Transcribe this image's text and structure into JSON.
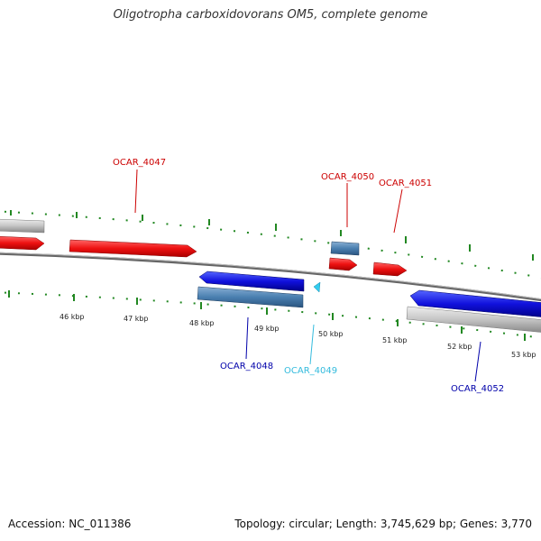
{
  "title": "Oligotropha carboxidovorans OM5, complete genome",
  "footer": {
    "accession": "Accession: NC_011386",
    "summary": "Topology: circular; Length: 3,745,629 bp; Genes: 3,770"
  },
  "colors": {
    "forward_cds": "#ee1111",
    "reverse_cds": "#1111dd",
    "forward_gene": "#4a7fb0",
    "reverse_gene": "#5a8ab8",
    "other_gene": "#bbbbbb",
    "small_feature": "#33ccee",
    "tick": "#228822",
    "backbone": "#777777",
    "label_forward": "#cc0000",
    "label_reverse": "#0000aa",
    "label_small": "#33bbdd"
  },
  "scale": {
    "ticks": [
      {
        "label": "46 kbp"
      },
      {
        "label": "47 kbp"
      },
      {
        "label": "48 kbp"
      },
      {
        "label": "49 kbp"
      },
      {
        "label": "50 kbp"
      },
      {
        "label": "51 kbp"
      },
      {
        "label": "52 kbp"
      },
      {
        "label": "53 kbp"
      }
    ]
  },
  "genes": [
    {
      "label": "OCAR_4047",
      "kind": "forward"
    },
    {
      "label": "OCAR_4050",
      "kind": "forward"
    },
    {
      "label": "OCAR_4051",
      "kind": "forward"
    },
    {
      "label": "OCAR_4048",
      "kind": "reverse"
    },
    {
      "label": "OCAR_4049",
      "kind": "small"
    },
    {
      "label": "OCAR_4052",
      "kind": "reverse"
    }
  ]
}
